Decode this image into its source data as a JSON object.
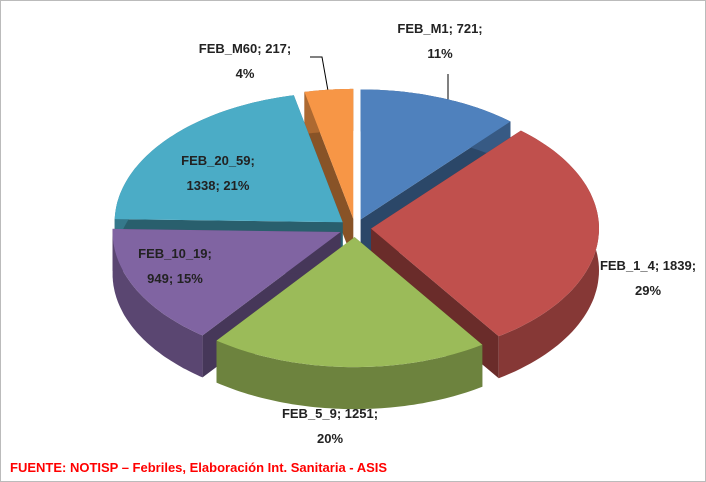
{
  "chart_data": {
    "type": "pie3d",
    "categories": [
      "FEB_M1",
      "FEB_1_4",
      "FEB_5_9",
      "FEB_10_19",
      "FEB_20_59",
      "FEB_M60"
    ],
    "values": [
      721,
      1839,
      1251,
      949,
      1338,
      217
    ],
    "value_labels": [
      [
        "FEB_M1; 721;",
        "11%"
      ],
      [
        "FEB_1_4; 1839;",
        "29%"
      ],
      [
        "FEB_5_9; 1251;",
        "20%"
      ],
      [
        "FEB_10_19;",
        "949; 15%"
      ],
      [
        "FEB_20_59;",
        "1338; 21%"
      ],
      [
        "FEB_M60; 217;",
        "4%"
      ]
    ],
    "colors": [
      "#4f81bd",
      "#c0504d",
      "#9bbb59",
      "#8064a2",
      "#4bacc6",
      "#f79646"
    ],
    "source": "FUENTE:  NOTISP – Febriles, Elaboración Int. Sanitaria - ASIS"
  }
}
